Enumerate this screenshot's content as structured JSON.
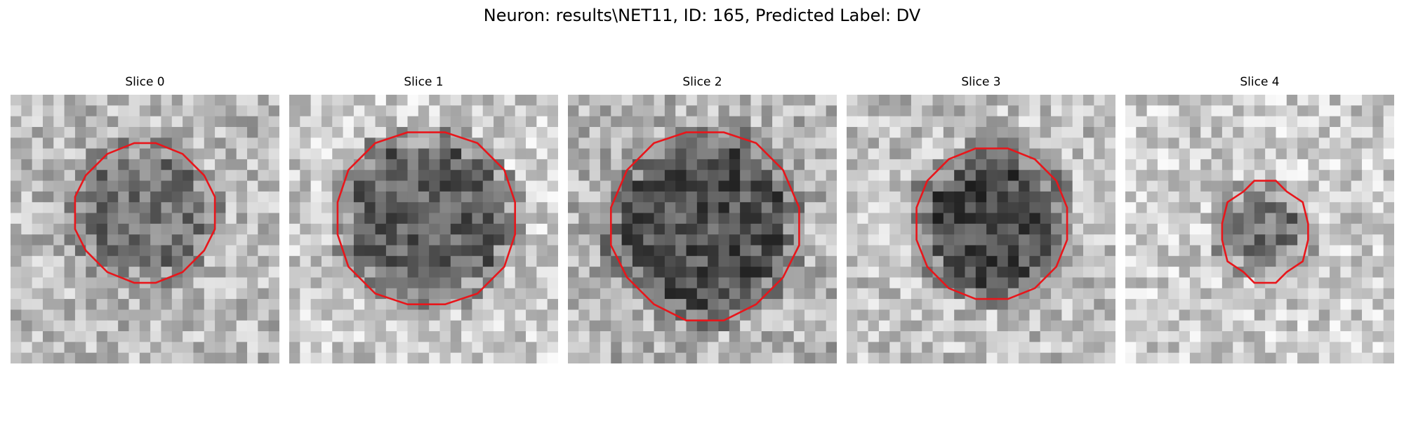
{
  "figure": {
    "title": "Neuron: results\\NET11, ID: 165, Predicted Label: DV"
  },
  "panels": [
    {
      "title": "Slice 0",
      "contour_color": "#e8161b"
    },
    {
      "title": "Slice 1",
      "contour_color": "#e8161b"
    },
    {
      "title": "Slice 2",
      "contour_color": "#e8161b"
    },
    {
      "title": "Slice 3",
      "contour_color": "#e8161b"
    },
    {
      "title": "Slice 4",
      "contour_color": "#e8161b"
    }
  ]
}
